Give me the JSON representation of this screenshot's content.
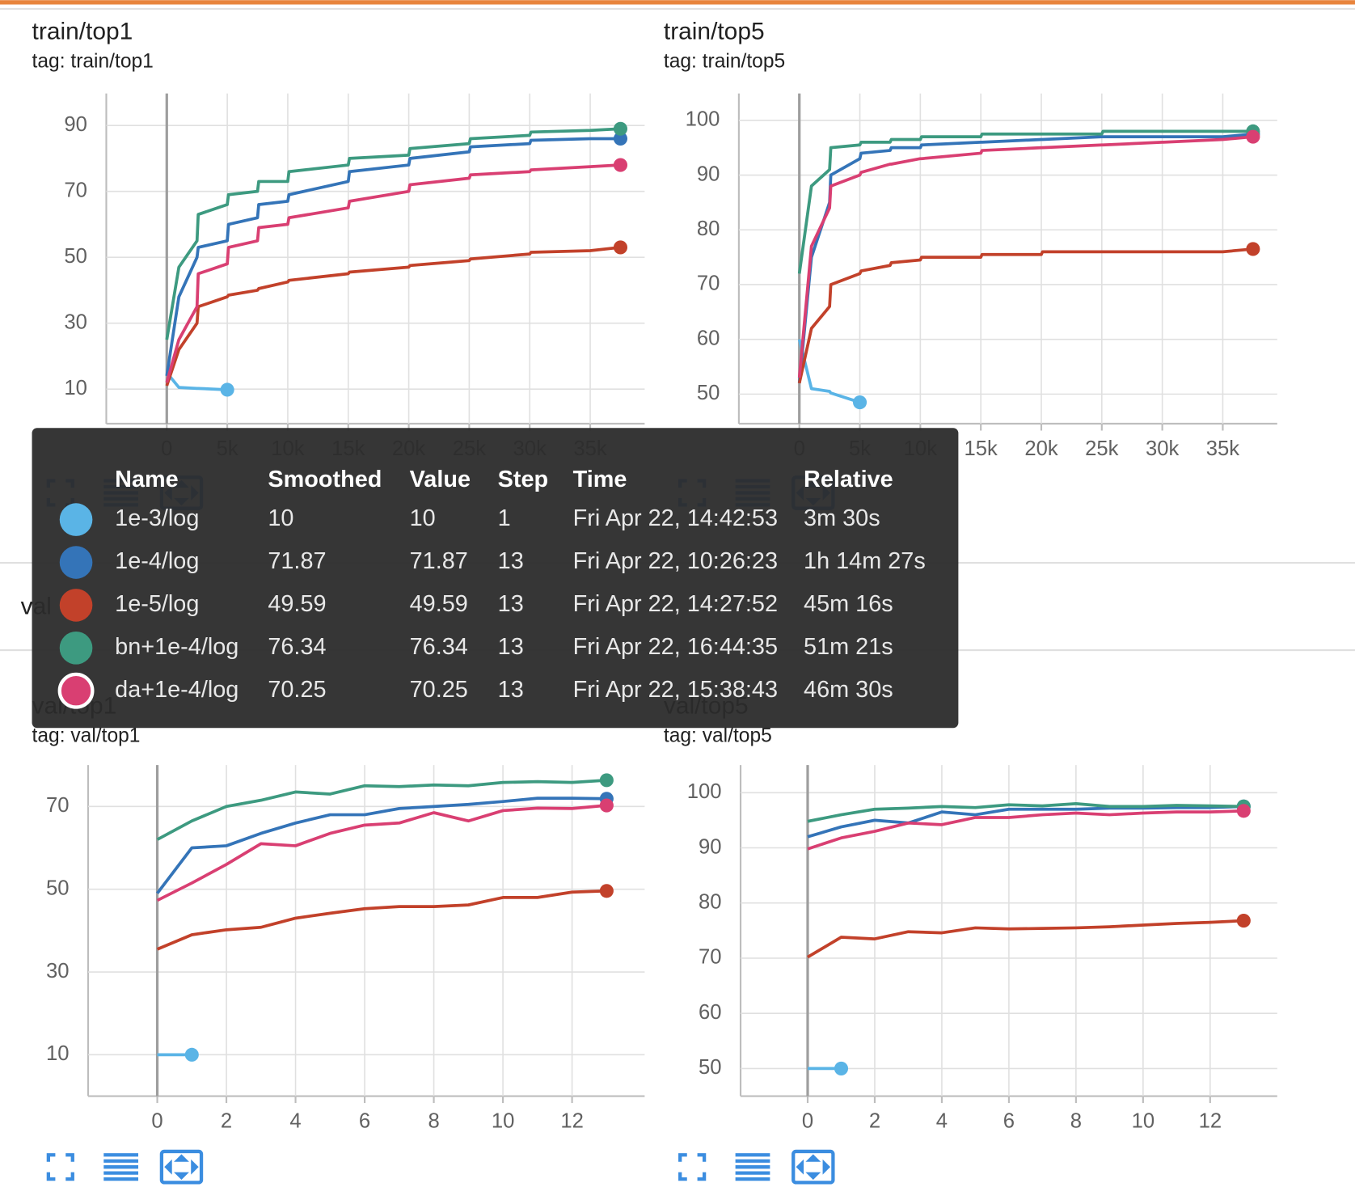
{
  "chart_data": [
    {
      "type": "line",
      "title": "train/top1",
      "subtitle": "tag: train/top1",
      "x": [
        0,
        1000,
        2500,
        2600,
        5000,
        5100,
        7500,
        7600,
        10000,
        10100,
        15000,
        15100,
        20000,
        20100,
        25000,
        25100,
        30000,
        30100,
        35000,
        37500
      ],
      "xlim": [
        -5000,
        39500
      ],
      "xticks": [
        0,
        {
          "value": 5000,
          "label": "5k"
        },
        {
          "value": 10000,
          "label": "10k"
        },
        {
          "value": 15000,
          "label": "15k"
        },
        {
          "value": 20000,
          "label": "20k"
        },
        {
          "value": 25000,
          "label": "25k"
        },
        {
          "value": 30000,
          "label": "30k"
        },
        {
          "value": 35000,
          "label": "35k"
        }
      ],
      "ylim": [
        -0.5,
        99.7
      ],
      "yticks": [
        10,
        30,
        50,
        70,
        90
      ],
      "grid": true,
      "series": [
        {
          "name": "1e-3/log",
          "color": "#5ab4e6",
          "values": [
            15,
            10.5,
            10.2,
            10.2,
            9.8,
            null,
            null,
            null,
            null,
            null,
            null,
            null,
            null,
            null,
            null,
            null,
            null,
            null,
            null,
            null
          ]
        },
        {
          "name": "1e-4/log",
          "color": "#3474b8",
          "values": [
            14,
            38,
            50,
            53,
            55,
            60,
            62,
            66,
            67,
            69,
            73,
            76,
            78,
            80,
            82,
            83.5,
            84.5,
            85.5,
            86,
            86
          ]
        },
        {
          "name": "1e-5/log",
          "color": "#c2412a",
          "values": [
            11,
            22,
            30,
            35,
            38,
            38.5,
            40,
            40.5,
            42.5,
            43,
            45,
            45.5,
            47,
            47.5,
            49,
            49.5,
            51,
            51.5,
            52,
            53
          ]
        },
        {
          "name": "bn+1e-4/log",
          "color": "#3d9a80",
          "values": [
            25,
            47,
            55,
            63,
            66,
            69,
            70,
            73,
            73,
            76,
            78,
            80,
            81,
            83,
            84.5,
            86,
            87,
            88,
            88.5,
            89
          ]
        },
        {
          "name": "da+1e-4/log",
          "color": "#d93f72",
          "values": [
            12,
            25,
            35,
            45,
            48,
            53,
            55,
            59,
            60,
            62,
            65,
            67,
            70,
            72,
            74,
            75,
            76,
            76.5,
            77.5,
            78
          ]
        }
      ]
    },
    {
      "type": "line",
      "title": "train/top5",
      "subtitle": "tag: train/top5",
      "x": [
        0,
        1000,
        2500,
        2600,
        5000,
        5100,
        7500,
        7600,
        10000,
        10100,
        15000,
        15100,
        20000,
        20100,
        25000,
        25100,
        30000,
        30100,
        35000,
        37500
      ],
      "xlim": [
        -5000,
        39500
      ],
      "xticks": [
        0,
        {
          "value": 5000,
          "label": "5k"
        },
        {
          "value": 10000,
          "label": "10k"
        },
        {
          "value": 15000,
          "label": "15k"
        },
        {
          "value": 20000,
          "label": "20k"
        },
        {
          "value": 25000,
          "label": "25k"
        },
        {
          "value": 30000,
          "label": "30k"
        },
        {
          "value": 35000,
          "label": "35k"
        }
      ],
      "ylim": [
        44.6,
        104.9
      ],
      "yticks": [
        50,
        60,
        70,
        80,
        90,
        100
      ],
      "grid": true,
      "series": [
        {
          "name": "1e-3/log",
          "color": "#5ab4e6",
          "values": [
            60,
            51,
            50.5,
            50.2,
            48.5,
            null,
            null,
            null,
            null,
            null,
            null,
            null,
            null,
            null,
            null,
            null,
            null,
            null,
            null,
            null
          ]
        },
        {
          "name": "1e-4/log",
          "color": "#3474b8",
          "values": [
            52,
            75,
            85,
            90,
            93,
            94,
            94.5,
            95,
            95,
            95.5,
            96,
            96,
            96.5,
            96.5,
            97,
            97,
            97,
            97,
            97,
            97.5
          ]
        },
        {
          "name": "1e-5/log",
          "color": "#c2412a",
          "values": [
            52,
            62,
            66,
            70,
            72,
            72.5,
            73.5,
            74,
            74.5,
            75,
            75,
            75.5,
            75.5,
            76,
            76,
            76,
            76,
            76,
            76,
            76.5
          ]
        },
        {
          "name": "bn+1e-4/log",
          "color": "#3d9a80",
          "values": [
            72,
            88,
            91,
            95,
            95.5,
            96,
            96,
            96.5,
            96.5,
            97,
            97,
            97.5,
            97.5,
            97.5,
            97.5,
            98,
            98,
            98,
            98,
            98
          ]
        },
        {
          "name": "da+1e-4/log",
          "color": "#d93f72",
          "values": [
            53,
            77,
            84,
            88,
            90,
            90.5,
            92,
            92,
            93,
            93,
            94,
            94.5,
            95,
            95,
            95.5,
            95.5,
            96,
            96,
            96.5,
            97
          ]
        }
      ]
    },
    {
      "type": "line",
      "title": "val/top1",
      "subtitle": "tag: val/top1",
      "x": [
        0,
        1,
        2,
        3,
        4,
        5,
        6,
        7,
        8,
        9,
        10,
        11,
        12,
        13
      ],
      "xlim": [
        -2,
        14.1
      ],
      "xticks": [
        0,
        2,
        4,
        6,
        8,
        10,
        12
      ],
      "ylim": [
        0,
        80
      ],
      "yticks": [
        10,
        30,
        50,
        70
      ],
      "grid": true,
      "series": [
        {
          "name": "1e-3/log",
          "color": "#5ab4e6",
          "values": [
            10,
            10,
            null,
            null,
            null,
            null,
            null,
            null,
            null,
            null,
            null,
            null,
            null,
            null
          ]
        },
        {
          "name": "1e-4/log",
          "color": "#3474b8",
          "values": [
            49,
            60,
            60.5,
            63.5,
            66,
            68,
            68,
            69.5,
            70,
            70.5,
            71.2,
            72,
            72,
            71.87
          ]
        },
        {
          "name": "1e-5/log",
          "color": "#c2412a",
          "values": [
            35.5,
            39,
            40.2,
            40.8,
            43,
            44.2,
            45.3,
            45.8,
            45.8,
            46.2,
            48,
            48,
            49.3,
            49.59
          ]
        },
        {
          "name": "bn+1e-4/log",
          "color": "#3d9a80",
          "values": [
            62,
            66.5,
            70,
            71.5,
            73.5,
            73,
            75,
            74.8,
            75.2,
            75,
            75.8,
            76,
            75.8,
            76.34
          ]
        },
        {
          "name": "da+1e-4/log",
          "color": "#d93f72",
          "values": [
            47.3,
            51.5,
            56,
            61,
            60.5,
            63.5,
            65.5,
            66,
            68.5,
            66.5,
            69,
            69.6,
            69.5,
            70.25
          ]
        }
      ]
    },
    {
      "type": "line",
      "title": "val/top5",
      "subtitle": "tag: val/top5",
      "x": [
        0,
        1,
        2,
        3,
        4,
        5,
        6,
        7,
        8,
        9,
        10,
        11,
        12,
        13
      ],
      "xlim": [
        -2,
        14
      ],
      "xticks": [
        0,
        2,
        4,
        6,
        8,
        10,
        12
      ],
      "ylim": [
        45,
        105
      ],
      "yticks": [
        50,
        60,
        70,
        80,
        90,
        100
      ],
      "grid": true,
      "series": [
        {
          "name": "1e-3/log",
          "color": "#5ab4e6",
          "values": [
            50,
            50,
            null,
            null,
            null,
            null,
            null,
            null,
            null,
            null,
            null,
            null,
            null,
            null
          ]
        },
        {
          "name": "1e-4/log",
          "color": "#3474b8",
          "values": [
            92,
            93.8,
            95,
            94.5,
            96.5,
            96,
            97,
            97,
            97,
            97.2,
            97.2,
            97.3,
            97.3,
            97.5
          ]
        },
        {
          "name": "1e-5/log",
          "color": "#c2412a",
          "values": [
            70.2,
            73.8,
            73.5,
            74.8,
            74.6,
            75.5,
            75.3,
            75.4,
            75.5,
            75.7,
            76,
            76.3,
            76.5,
            76.8
          ]
        },
        {
          "name": "bn+1e-4/log",
          "color": "#3d9a80",
          "values": [
            94.8,
            96,
            97,
            97.2,
            97.5,
            97.3,
            97.8,
            97.6,
            98,
            97.5,
            97.5,
            97.7,
            97.6,
            97.5
          ]
        },
        {
          "name": "da+1e-4/log",
          "color": "#d93f72",
          "values": [
            89.8,
            91.8,
            93,
            94.5,
            94.2,
            95.5,
            95.5,
            96,
            96.3,
            96,
            96.3,
            96.5,
            96.5,
            96.7
          ]
        }
      ]
    }
  ],
  "section_label": "val",
  "tooltip": {
    "headers": [
      "Name",
      "Smoothed",
      "Value",
      "Step",
      "Time",
      "Relative"
    ],
    "rows": [
      [
        "1e-3/log",
        "10",
        "10",
        "1",
        "Fri Apr 22, 14:42:53",
        "3m 30s"
      ],
      [
        "1e-4/log",
        "71.87",
        "71.87",
        "13",
        "Fri Apr 22, 10:26:23",
        "1h 14m 27s"
      ],
      [
        "1e-5/log",
        "49.59",
        "49.59",
        "13",
        "Fri Apr 22, 14:27:52",
        "45m 16s"
      ],
      [
        "bn+1e-4/log",
        "76.34",
        "76.34",
        "13",
        "Fri Apr 22, 16:44:35",
        "51m 21s"
      ],
      [
        "da+1e-4/log",
        "70.25",
        "70.25",
        "13",
        "Fri Apr 22, 15:38:43",
        "46m 30s"
      ]
    ]
  }
}
